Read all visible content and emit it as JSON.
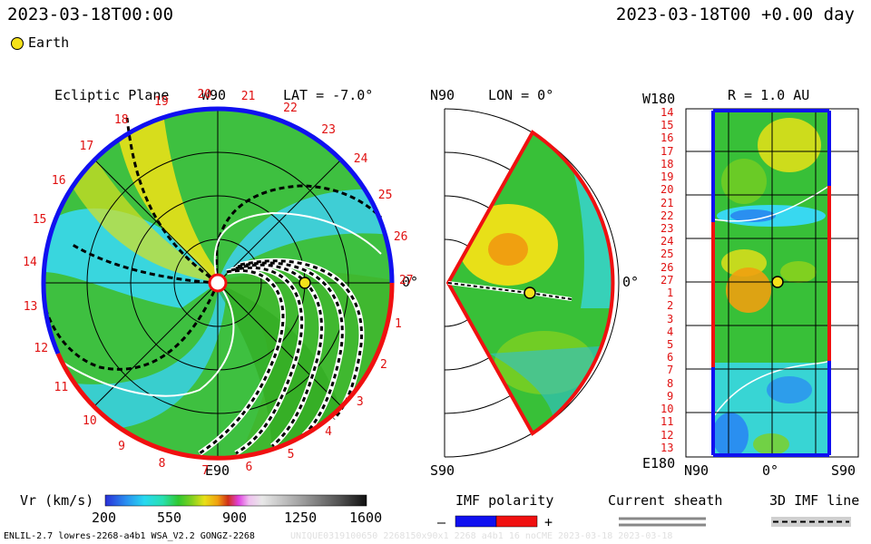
{
  "header": {
    "timestamp_left": "2023-03-18T00:00",
    "timestamp_right": "2023-03-18T00 +0.00 day"
  },
  "legend": {
    "earth_label": "Earth",
    "earth_color": "#f5e11a"
  },
  "panels": {
    "ecliptic": {
      "title": "Ecliptic Plane",
      "top_label": "W90",
      "bottom_label": "E90",
      "right_label": "0°",
      "lat_label": "LAT = -7.0°",
      "rotations": [
        "20",
        "21",
        "22",
        "23",
        "24",
        "25",
        "26",
        "27",
        "1",
        "2",
        "3",
        "4",
        "5",
        "6",
        "7",
        "8",
        "9",
        "10",
        "11",
        "12",
        "13",
        "14",
        "15",
        "16",
        "17",
        "18",
        "19"
      ]
    },
    "meridional": {
      "top_label": "N90",
      "bottom_label": "S90",
      "lon_label": "LON = 0°",
      "right_label": "0°"
    },
    "radial": {
      "r_label": "R = 1.0 AU",
      "top_left_label": "W180",
      "bottom_left_label": "E180",
      "x_labels": [
        "N90",
        "0°",
        "S90"
      ],
      "rows": [
        "14",
        "15",
        "16",
        "17",
        "18",
        "19",
        "20",
        "21",
        "22",
        "23",
        "24",
        "25",
        "26",
        "27",
        "1",
        "2",
        "3",
        "4",
        "5",
        "6",
        "7",
        "8",
        "9",
        "10",
        "11",
        "12",
        "13"
      ]
    }
  },
  "colorbar": {
    "label": "Vr (km/s)",
    "ticks": [
      "200",
      "550",
      "900",
      "1250",
      "1600"
    ],
    "stops": [
      "#2a2fd8",
      "#2a8ff0",
      "#28d8f0",
      "#28e0b0",
      "#30c830",
      "#80d020",
      "#e8e018",
      "#f0a010",
      "#d03018",
      "#e040e0",
      "#f0c0f0",
      "#e0e0e0",
      "#a0a0a0",
      "#505050",
      "#101010"
    ]
  },
  "imf_polarity": {
    "label": "IMF polarity",
    "minus": "–",
    "plus": "+",
    "neg_color": "#1010f0",
    "pos_color": "#f01010"
  },
  "current_sheath": {
    "label": "Current sheath"
  },
  "imf_line": {
    "label": "3D IMF line"
  },
  "footer": {
    "left": "ENLIL-2.7 lowres-2268-a4b1 WSA_V2.2 GONGZ-2268",
    "right": "UNIQUE0319100650 2268150x90x1 2268 a4b1 16 noCME 2023-03-18 2023-03-18"
  },
  "chart_data": [
    {
      "type": "heatmap",
      "title": "Ecliptic Plane",
      "variable": "Vr (km/s)",
      "color_range": [
        200,
        1600
      ],
      "earth": {
        "longitude_deg": 0,
        "r_au": 1.0
      }
    },
    {
      "type": "heatmap",
      "title": "LON = 0°",
      "variable": "Vr (km/s)",
      "lat_range_deg": [
        -90,
        90
      ]
    },
    {
      "type": "heatmap",
      "title": "R = 1.0 AU",
      "variable": "Vr (km/s)",
      "earth": {
        "lat_deg": 0,
        "rotation": 27
      }
    }
  ]
}
